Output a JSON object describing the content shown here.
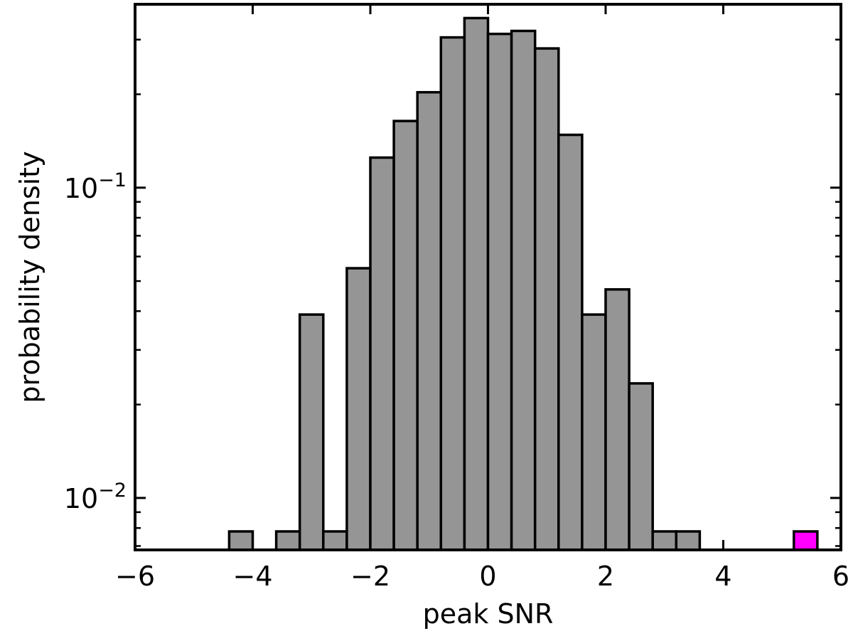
{
  "chart_data": {
    "type": "bar",
    "title": "",
    "xlabel": "peak SNR",
    "ylabel": "probability density",
    "xlim": [
      -6,
      6
    ],
    "ylim": [
      0.0068,
      0.39
    ],
    "yscale": "log",
    "grid": false,
    "legend": "none",
    "bin_width": 0.4,
    "x_ticks": [
      {
        "value": -6,
        "label": "−6"
      },
      {
        "value": -4,
        "label": "−4"
      },
      {
        "value": -2,
        "label": "−2"
      },
      {
        "value": 0,
        "label": "0"
      },
      {
        "value": 2,
        "label": "2"
      },
      {
        "value": 4,
        "label": "4"
      },
      {
        "value": 6,
        "label": "6"
      }
    ],
    "y_major_ticks": [
      {
        "value": 0.01,
        "base": "10",
        "exp": "−2"
      },
      {
        "value": 0.1,
        "base": "10",
        "exp": "−1"
      }
    ],
    "series": [
      {
        "color": "#959595",
        "bars": [
          {
            "x0": -4.4,
            "x1": -4.0,
            "value": 0.0078
          },
          {
            "x0": -3.6,
            "x1": -3.2,
            "value": 0.0078
          },
          {
            "x0": -3.2,
            "x1": -2.8,
            "value": 0.039
          },
          {
            "x0": -2.8,
            "x1": -2.4,
            "value": 0.0078
          },
          {
            "x0": -2.4,
            "x1": -2.0,
            "value": 0.055
          },
          {
            "x0": -2.0,
            "x1": -1.6,
            "value": 0.125
          },
          {
            "x0": -1.6,
            "x1": -1.2,
            "value": 0.164
          },
          {
            "x0": -1.2,
            "x1": -0.8,
            "value": 0.203
          },
          {
            "x0": -0.8,
            "x1": -0.4,
            "value": 0.305
          },
          {
            "x0": -0.4,
            "x1": 0.0,
            "value": 0.352
          },
          {
            "x0": 0.0,
            "x1": 0.4,
            "value": 0.313
          },
          {
            "x0": 0.4,
            "x1": 0.8,
            "value": 0.32
          },
          {
            "x0": 0.8,
            "x1": 1.2,
            "value": 0.281
          },
          {
            "x0": 1.2,
            "x1": 1.6,
            "value": 0.148
          },
          {
            "x0": 1.6,
            "x1": 2.0,
            "value": 0.039
          },
          {
            "x0": 2.0,
            "x1": 2.4,
            "value": 0.047
          },
          {
            "x0": 2.4,
            "x1": 2.8,
            "value": 0.0234
          },
          {
            "x0": 2.8,
            "x1": 3.2,
            "value": 0.0078
          },
          {
            "x0": 3.2,
            "x1": 3.6,
            "value": 0.0078
          }
        ]
      },
      {
        "color": "#ff00ff",
        "bars": [
          {
            "x0": 5.2,
            "x1": 5.6,
            "value": 0.0078
          }
        ]
      }
    ]
  }
}
